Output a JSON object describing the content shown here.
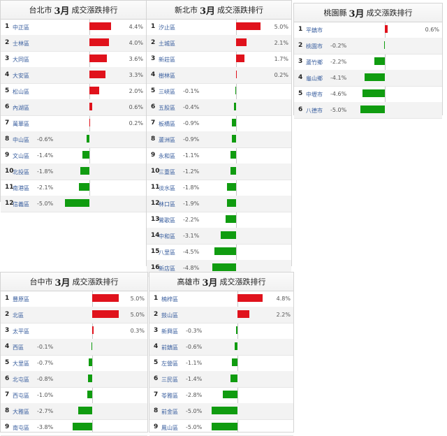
{
  "chart_data": [
    {
      "type": "bar",
      "city": "台北市",
      "month": "3月",
      "title": "成交漲跌排行",
      "categories": [
        "中正區",
        "士林區",
        "大同區",
        "大安區",
        "松山區",
        "內湖區",
        "萬華區",
        "中山區",
        "文山區",
        "北投區",
        "南港區",
        "信義區"
      ],
      "values": [
        4.4,
        4.0,
        3.6,
        3.3,
        2.0,
        0.6,
        0.2,
        -0.6,
        -1.4,
        -1.8,
        -2.1,
        -5.0
      ],
      "labels": [
        "4.4%",
        "4.0%",
        "3.6%",
        "3.3%",
        "2.0%",
        "0.6%",
        "0.2%",
        "-0.6%",
        "-1.4%",
        "-1.8%",
        "-2.1%",
        "-5.0%"
      ]
    },
    {
      "type": "bar",
      "city": "新北市",
      "month": "3月",
      "title": "成交漲跌排行",
      "categories": [
        "汐止區",
        "土城區",
        "新莊區",
        "樹林區",
        "三峽區",
        "五股區",
        "板橋區",
        "蘆洲區",
        "永和區",
        "三重區",
        "淡水區",
        "林口區",
        "鶯歌區",
        "中和區",
        "八里區",
        "新店區"
      ],
      "values": [
        5.0,
        2.1,
        1.7,
        0.2,
        -0.1,
        -0.4,
        -0.9,
        -0.9,
        -1.1,
        -1.2,
        -1.8,
        -1.9,
        -2.2,
        -3.1,
        -4.5,
        -4.8
      ],
      "labels": [
        "5.0%",
        "2.1%",
        "1.7%",
        "0.2%",
        "-0.1%",
        "-0.4%",
        "-0.9%",
        "-0.9%",
        "-1.1%",
        "-1.2%",
        "-1.8%",
        "-1.9%",
        "-2.2%",
        "-3.1%",
        "-4.5%",
        "-4.8%"
      ]
    },
    {
      "type": "bar",
      "city": "桃園縣",
      "month": "3月",
      "title": "成交漲跌排行",
      "categories": [
        "平鎮市",
        "桃園市",
        "蘆竹鄉",
        "龜山鄉",
        "中壢市",
        "八德市"
      ],
      "values": [
        0.6,
        -0.2,
        -2.2,
        -4.1,
        -4.6,
        -5.0
      ],
      "labels": [
        "0.6%",
        "-0.2%",
        "-2.2%",
        "-4.1%",
        "-4.6%",
        "-5.0%"
      ]
    },
    {
      "type": "bar",
      "city": "台中市",
      "month": "3月",
      "title": "成交漲跌排行",
      "categories": [
        "豐原區",
        "北區",
        "太平區",
        "西區",
        "大里區",
        "北屯區",
        "西屯區",
        "大雅區",
        "南屯區"
      ],
      "values": [
        5.0,
        5.0,
        0.3,
        -0.1,
        -0.7,
        -0.8,
        -1.0,
        -2.7,
        -3.8
      ],
      "labels": [
        "5.0%",
        "5.0%",
        "0.3%",
        "-0.1%",
        "-0.7%",
        "-0.8%",
        "-1.0%",
        "-2.7%",
        "-3.8%"
      ]
    },
    {
      "type": "bar",
      "city": "高雄市",
      "month": "3月",
      "title": "成交漲跌排行",
      "categories": [
        "楠梓區",
        "鼓山區",
        "新興區",
        "前鎮區",
        "左營區",
        "三民區",
        "苓雅區",
        "前金區",
        "鳳山區"
      ],
      "values": [
        4.8,
        2.2,
        -0.3,
        -0.6,
        -1.1,
        -1.4,
        -2.8,
        -5.0,
        -5.0
      ],
      "labels": [
        "4.8%",
        "2.2%",
        "-0.3%",
        "-0.6%",
        "-1.1%",
        "-1.4%",
        "-2.8%",
        "-5.0%",
        "-5.0%"
      ]
    }
  ],
  "colors": {
    "positive": "#e0121c",
    "negative": "#109c10",
    "link": "#3a5f9f"
  }
}
